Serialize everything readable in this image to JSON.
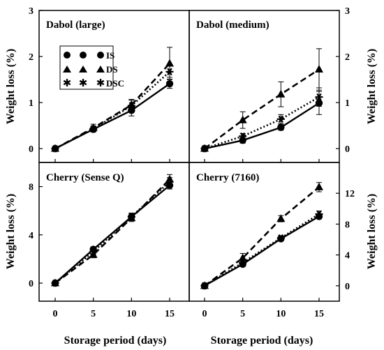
{
  "figure": {
    "ylabel": "Weight loss (%)",
    "xlabel": "Storage period (days)",
    "legend": {
      "placement": "top-left of panel 1",
      "entries": [
        {
          "label": "IS",
          "marker": "circle"
        },
        {
          "label": "DS",
          "marker": "triangle"
        },
        {
          "label": "DSC",
          "marker": "star"
        }
      ]
    },
    "line_styles": {
      "IS": "solid",
      "DS": "dashed",
      "DSC": "dotted"
    },
    "colors": {
      "ink": "#000000",
      "background": "#ffffff"
    }
  },
  "chart_data": [
    {
      "type": "line",
      "title": "Dabol (large)",
      "x": [
        0,
        5,
        10,
        15
      ],
      "xticks": [
        "0",
        "5",
        "10",
        "15"
      ],
      "ylim": [
        -0.3,
        3
      ],
      "yticks": [
        "0",
        "1",
        "2",
        "3"
      ],
      "yaxis_side": "left",
      "series": [
        {
          "name": "IS",
          "values": [
            0,
            0.42,
            0.83,
            1.41
          ],
          "errors": [
            0.04,
            0.06,
            0.12,
            0.1
          ]
        },
        {
          "name": "DS",
          "values": [
            0,
            0.45,
            0.95,
            1.85
          ],
          "errors": [
            0.04,
            0.08,
            0.12,
            0.35
          ]
        },
        {
          "name": "DSC",
          "values": [
            0,
            0.43,
            0.93,
            1.67
          ],
          "errors": [
            0.04,
            0.06,
            0.12,
            0.12
          ]
        }
      ]
    },
    {
      "type": "line",
      "title": "Dabol (medium)",
      "x": [
        0,
        5,
        10,
        15
      ],
      "xticks": [
        "0",
        "5",
        "10",
        "15"
      ],
      "ylim": [
        -0.3,
        3
      ],
      "yticks": [
        "0",
        "1",
        "2",
        "3"
      ],
      "yaxis_side": "right",
      "series": [
        {
          "name": "IS",
          "values": [
            0,
            0.18,
            0.46,
            0.99
          ],
          "errors": [
            0.04,
            0.06,
            0.06,
            0.25
          ]
        },
        {
          "name": "DS",
          "values": [
            0,
            0.62,
            1.18,
            1.72
          ],
          "errors": [
            0.04,
            0.18,
            0.27,
            0.45
          ]
        },
        {
          "name": "DSC",
          "values": [
            0,
            0.27,
            0.64,
            1.12
          ],
          "errors": [
            0.04,
            0.06,
            0.1,
            0.2
          ]
        }
      ]
    },
    {
      "type": "line",
      "title": "Cherry (Sense Q)",
      "x": [
        0,
        5,
        10,
        15
      ],
      "xticks": [
        "0",
        "5",
        "10",
        "15"
      ],
      "ylim": [
        -1.5,
        10
      ],
      "yticks": [
        "0",
        "4",
        "8"
      ],
      "yaxis_side": "left",
      "series": [
        {
          "name": "IS",
          "values": [
            0,
            2.8,
            5.5,
            8.1
          ],
          "errors": [
            0.1,
            0.2,
            0.3,
            0.3
          ]
        },
        {
          "name": "DS",
          "values": [
            0,
            2.35,
            5.4,
            8.6
          ],
          "errors": [
            0.1,
            0.25,
            0.3,
            0.4
          ]
        },
        {
          "name": "DSC",
          "values": [
            0,
            2.6,
            5.5,
            8.4
          ],
          "errors": [
            0.1,
            0.2,
            0.3,
            0.35
          ]
        }
      ]
    },
    {
      "type": "line",
      "title": "Cherry (7160)",
      "x": [
        0,
        5,
        10,
        15
      ],
      "xticks": [
        "0",
        "5",
        "10",
        "15"
      ],
      "ylim": [
        -2,
        16
      ],
      "yticks": [
        "0",
        "4",
        "8",
        "12"
      ],
      "yaxis_side": "right",
      "series": [
        {
          "name": "IS",
          "values": [
            0,
            2.8,
            6.1,
            9.0
          ],
          "errors": [
            0.2,
            0.3,
            0.3,
            0.3
          ]
        },
        {
          "name": "DS",
          "values": [
            0,
            3.6,
            8.7,
            12.8
          ],
          "errors": [
            0.2,
            0.6,
            0.4,
            0.6
          ]
        },
        {
          "name": "DSC",
          "values": [
            0,
            3.0,
            6.2,
            9.3
          ],
          "errors": [
            0.2,
            0.3,
            0.3,
            0.4
          ]
        }
      ]
    }
  ]
}
